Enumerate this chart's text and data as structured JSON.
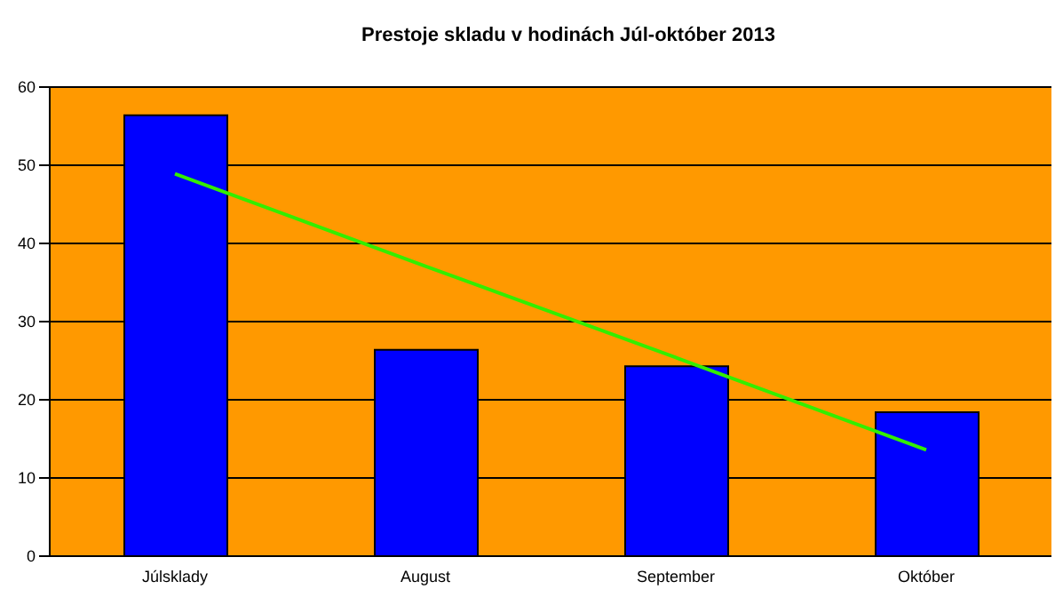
{
  "chart_data": {
    "type": "bar",
    "title": "Prestoje skladu v hodinách Júl-október 2013",
    "categories": [
      "Júlsklady",
      "August",
      "September",
      "Október"
    ],
    "series": [
      {
        "color": "#0000ff",
        "values": [
          56.4,
          26.4,
          24.3,
          18.4
        ]
      },
      {
        "type": "line",
        "color": "#33ee00",
        "values": [
          48.9,
          37.1,
          25.4,
          13.6
        ],
        "marker": "none"
      }
    ],
    "ylim": [
      0,
      60
    ],
    "yticks": [
      0,
      10,
      20,
      30,
      40,
      50,
      60
    ],
    "grid": "y",
    "legend": false
  }
}
